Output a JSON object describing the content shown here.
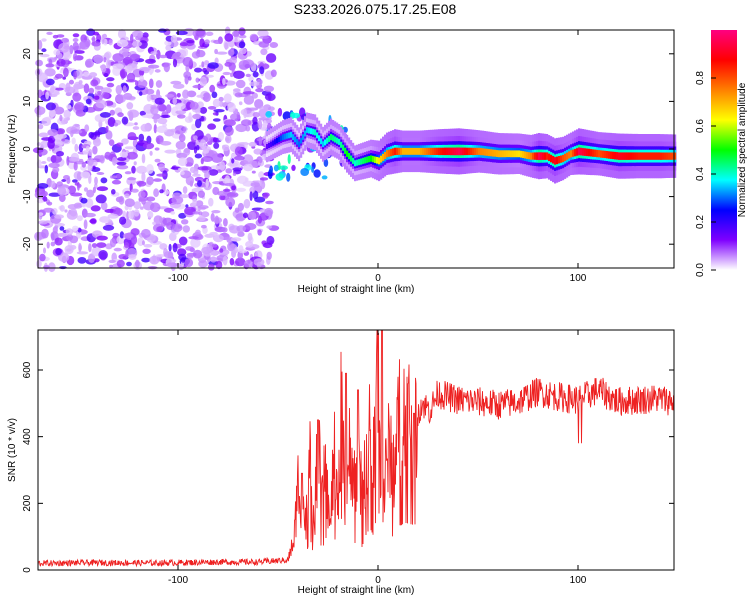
{
  "title": "S233.2026.075.17.25.E08",
  "chart_data": [
    {
      "type": "heatmap",
      "xlabel": "Height of straight line (km)",
      "ylabel": "Frequency (Hz)",
      "xlim": [
        -170,
        148
      ],
      "ylim": [
        -25,
        25
      ],
      "xticks": [
        -100,
        0,
        100
      ],
      "xtick_labels": [
        "-100",
        "0",
        "100"
      ],
      "yticks": [
        -20,
        -10,
        0,
        10,
        20
      ],
      "ytick_labels": [
        "-20",
        "-10",
        "0",
        "10",
        "20"
      ],
      "noise_region_x": [
        -170,
        -56
      ],
      "ridge": {
        "x": [
          -56,
          -48,
          -44,
          -40,
          -36,
          -32,
          -28,
          -24,
          -20,
          -16,
          -12,
          -8,
          -4,
          0,
          4,
          8,
          12,
          20,
          30,
          40,
          50,
          60,
          70,
          76,
          80,
          84,
          88,
          92,
          96,
          100,
          110,
          120,
          130,
          140,
          148
        ],
        "y": [
          0.5,
          2.5,
          3.0,
          1.0,
          4.0,
          3.5,
          1.0,
          2.5,
          1.5,
          -1.0,
          -3.0,
          -2.5,
          -2.0,
          -2.5,
          -1.0,
          -0.5,
          -0.5,
          -0.5,
          -0.5,
          -0.5,
          -0.5,
          -1.0,
          -1.0,
          -1.5,
          -1.5,
          -1.5,
          -2.5,
          -2.0,
          -1.0,
          -0.5,
          -1.0,
          -1.5,
          -1.5,
          -1.5,
          -1.5
        ],
        "amp": [
          0.15,
          0.3,
          0.35,
          0.3,
          0.35,
          0.4,
          0.35,
          0.45,
          0.4,
          0.5,
          0.4,
          0.45,
          0.5,
          0.65,
          0.75,
          0.85,
          0.7,
          0.7,
          0.85,
          0.95,
          0.75,
          0.7,
          0.65,
          0.75,
          0.95,
          0.85,
          0.9,
          0.8,
          0.75,
          0.95,
          0.8,
          0.9,
          0.85,
          0.85,
          0.8
        ]
      },
      "colorbar": {
        "label": "Normalized spectral amplitude",
        "range": [
          0,
          1
        ],
        "ticks": [
          0.0,
          0.2,
          0.4,
          0.6,
          0.8
        ],
        "tick_labels": [
          "0.0",
          "0.2",
          "0.4",
          "0.6",
          "0.8"
        ],
        "colors": [
          "#ffffff",
          "#7f00ff",
          "#0000ff",
          "#00ffff",
          "#00ff00",
          "#ffff00",
          "#ff8000",
          "#ff0000",
          "#ff0080"
        ]
      }
    },
    {
      "type": "line",
      "xlabel": "Height of straight line (km)",
      "ylabel": "SNR (10 * v/v)",
      "xlim": [
        -170,
        148
      ],
      "ylim": [
        0,
        720
      ],
      "xticks": [
        -100,
        0,
        100
      ],
      "xtick_labels": [
        "-100",
        "0",
        "100"
      ],
      "yticks": [
        0,
        200,
        400,
        600
      ],
      "ytick_labels": [
        "0",
        "200",
        "400",
        "600"
      ],
      "line_color": "#ee2222",
      "series": [
        {
          "name": "SNR",
          "x": [
            -170,
            -140,
            -110,
            -80,
            -60,
            -45,
            -42,
            -40,
            -38,
            -36,
            -34,
            -32,
            -30,
            -28,
            -26,
            -24,
            -22,
            -20,
            -18,
            -16,
            -14,
            -12,
            -10,
            -8,
            -6,
            -4,
            -2,
            0,
            2,
            4,
            6,
            8,
            10,
            14,
            18,
            22,
            26,
            30,
            40,
            50,
            60,
            70,
            80,
            90,
            100,
            110,
            120,
            130,
            140,
            148
          ],
          "y": [
            20,
            22,
            21,
            24,
            24,
            30,
            90,
            260,
            210,
            140,
            330,
            120,
            380,
            200,
            320,
            110,
            350,
            170,
            560,
            90,
            410,
            260,
            300,
            230,
            350,
            420,
            330,
            700,
            160,
            300,
            380,
            310,
            440,
            470,
            450,
            500,
            480,
            530,
            510,
            505,
            495,
            505,
            535,
            520,
            510,
            540,
            505,
            510,
            515,
            505
          ],
          "peaks": [
            [
              -30,
              450
            ],
            [
              -16,
              590
            ],
            [
              -10,
              540
            ],
            [
              2,
              720
            ],
            [
              -38,
              290
            ],
            [
              18,
              470
            ]
          ]
        }
      ]
    }
  ]
}
